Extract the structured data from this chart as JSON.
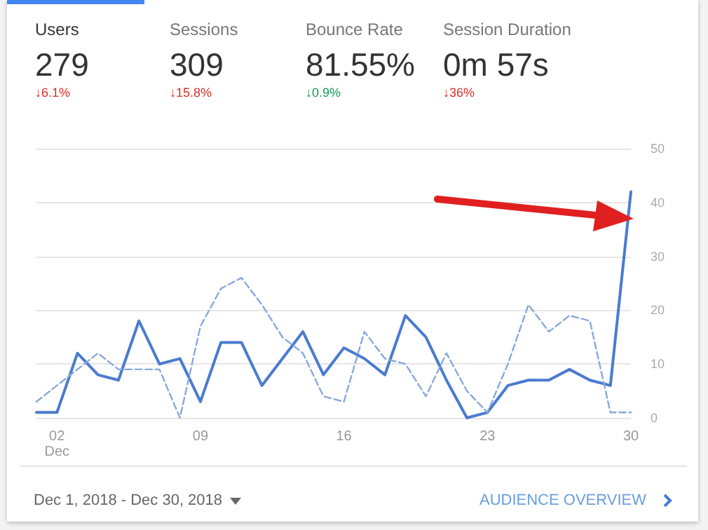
{
  "chart_data": [
    {
      "type": "other",
      "annotations": [
        "Users",
        "279",
        "↓6.1%",
        "Sessions",
        "309",
        "↓15.8%",
        "Bounce Rate",
        "81.55%",
        "↓0.9%",
        "Session Duration",
        "0m 57s",
        "↓36%"
      ],
      "colors": [
        "#d93025",
        "#d93025",
        "#0f9d58",
        "#d93025"
      ]
    },
    {
      "type": "line",
      "categories": [
        null,
        "02\nDec",
        null,
        null,
        null,
        null,
        null,
        null,
        "09",
        null,
        null,
        null,
        null,
        null,
        null,
        "16",
        null,
        null,
        null,
        null,
        null,
        null,
        "23",
        null,
        null,
        null,
        null,
        null,
        null,
        "30"
      ],
      "series": [
        {
          "color": "#4a7bd0",
          "line_style": "solid",
          "values": [
            1,
            1,
            12,
            8,
            7,
            18,
            10,
            11,
            3,
            14,
            14,
            6,
            11,
            16,
            8,
            13,
            11,
            8,
            19,
            15,
            7,
            0,
            1,
            6,
            7,
            7,
            9,
            7,
            6,
            42
          ]
        },
        {
          "color": "#8aa8dc",
          "line_style": "dashed",
          "values": [
            3,
            6,
            9,
            12,
            9,
            9,
            9,
            0,
            17,
            24,
            26,
            21,
            15,
            12,
            4,
            3,
            16,
            11,
            10,
            4,
            12,
            5,
            1,
            10,
            21,
            16,
            19,
            18,
            1,
            1
          ]
        }
      ],
      "ylim": [
        0,
        50
      ],
      "yticks": [
        0,
        10,
        20,
        30,
        40,
        50
      ],
      "grid": "y",
      "marker": "none",
      "annotations": [
        "Dec 1, 2018 - Dec 30, 2018",
        "AUDIENCE OVERVIEW"
      ]
    }
  ]
}
